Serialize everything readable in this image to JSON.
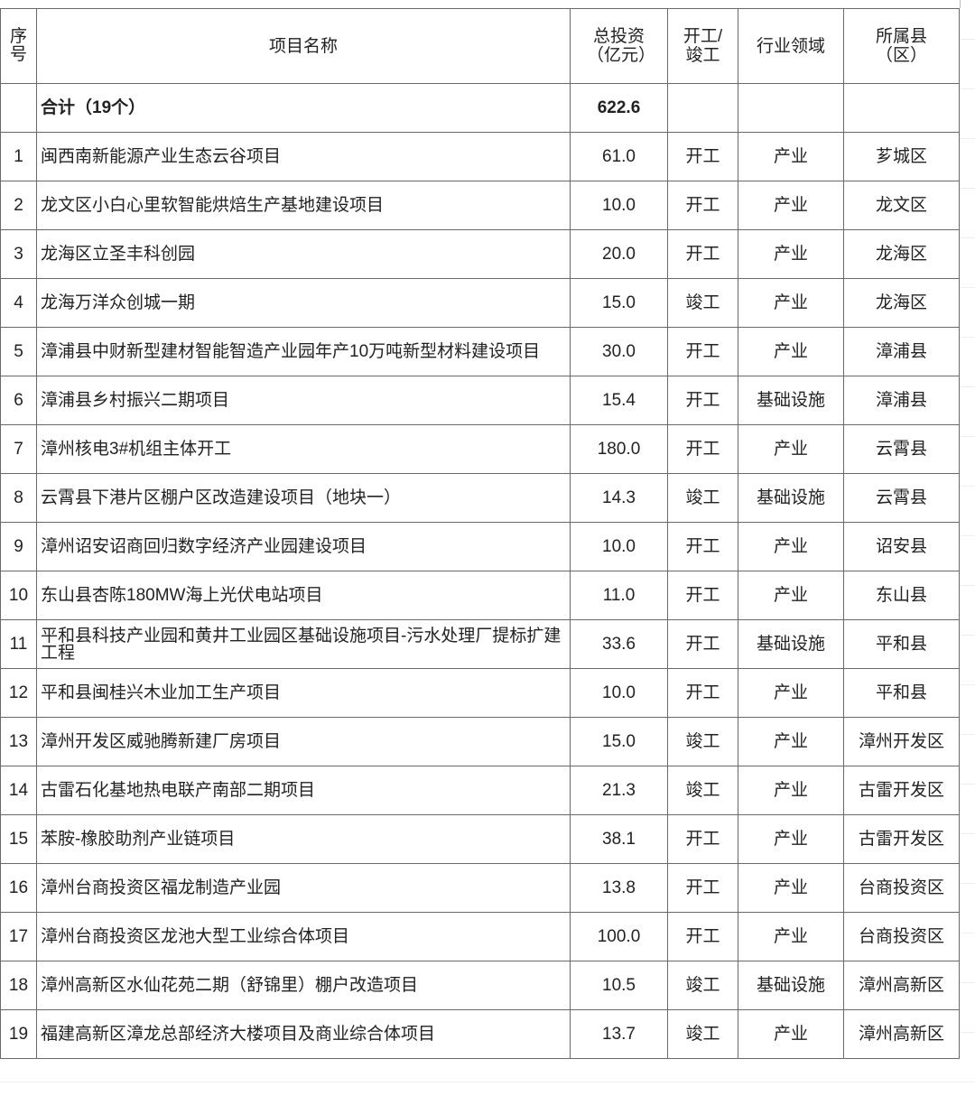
{
  "table": {
    "headers": {
      "seq": "序号",
      "name": "项目名称",
      "investment": "总投资（亿元）",
      "status": "开工/竣工",
      "sector": "行业领域",
      "county": "所属县（区）"
    },
    "total": {
      "label": "合计（19个）",
      "investment": "622.6"
    },
    "rows": [
      {
        "seq": "1",
        "name": "闽西南新能源产业生态云谷项目",
        "investment": "61.0",
        "status": "开工",
        "sector": "产业",
        "county": "芗城区"
      },
      {
        "seq": "2",
        "name": "龙文区小白心里软智能烘焙生产基地建设项目",
        "investment": "10.0",
        "status": "开工",
        "sector": "产业",
        "county": "龙文区"
      },
      {
        "seq": "3",
        "name": "龙海区立圣丰科创园",
        "investment": "20.0",
        "status": "开工",
        "sector": "产业",
        "county": "龙海区"
      },
      {
        "seq": "4",
        "name": "龙海万洋众创城一期",
        "investment": "15.0",
        "status": "竣工",
        "sector": "产业",
        "county": "龙海区"
      },
      {
        "seq": "5",
        "name": "漳浦县中财新型建材智能智造产业园年产10万吨新型材料建设项目",
        "investment": "30.0",
        "status": "开工",
        "sector": "产业",
        "county": "漳浦县"
      },
      {
        "seq": "6",
        "name": "漳浦县乡村振兴二期项目",
        "investment": "15.4",
        "status": "开工",
        "sector": "基础设施",
        "county": "漳浦县"
      },
      {
        "seq": "7",
        "name": "漳州核电3#机组主体开工",
        "investment": "180.0",
        "status": "开工",
        "sector": "产业",
        "county": "云霄县"
      },
      {
        "seq": "8",
        "name": "云霄县下港片区棚户区改造建设项目（地块一）",
        "investment": "14.3",
        "status": "竣工",
        "sector": "基础设施",
        "county": "云霄县"
      },
      {
        "seq": "9",
        "name": "漳州诏安诏商回归数字经济产业园建设项目",
        "investment": "10.0",
        "status": "开工",
        "sector": "产业",
        "county": "诏安县"
      },
      {
        "seq": "10",
        "name": "东山县杏陈180MW海上光伏电站项目",
        "investment": "11.0",
        "status": "开工",
        "sector": "产业",
        "county": "东山县"
      },
      {
        "seq": "11",
        "name": "平和县科技产业园和黄井工业园区基础设施项目-污水处理厂提标扩建工程",
        "investment": "33.6",
        "status": "开工",
        "sector": "基础设施",
        "county": "平和县"
      },
      {
        "seq": "12",
        "name": "平和县闽桂兴木业加工生产项目",
        "investment": "10.0",
        "status": "开工",
        "sector": "产业",
        "county": "平和县"
      },
      {
        "seq": "13",
        "name": "漳州开发区威驰腾新建厂房项目",
        "investment": "15.0",
        "status": "竣工",
        "sector": "产业",
        "county": "漳州开发区"
      },
      {
        "seq": "14",
        "name": "古雷石化基地热电联产南部二期项目",
        "investment": "21.3",
        "status": "竣工",
        "sector": "产业",
        "county": "古雷开发区"
      },
      {
        "seq": "15",
        "name": "苯胺-橡胶助剂产业链项目",
        "investment": "38.1",
        "status": "开工",
        "sector": "产业",
        "county": "古雷开发区"
      },
      {
        "seq": "16",
        "name": "漳州台商投资区福龙制造产业园",
        "investment": "13.8",
        "status": "开工",
        "sector": "产业",
        "county": "台商投资区"
      },
      {
        "seq": "17",
        "name": "漳州台商投资区龙池大型工业综合体项目",
        "investment": "100.0",
        "status": "开工",
        "sector": "产业",
        "county": "台商投资区"
      },
      {
        "seq": "18",
        "name": "漳州高新区水仙花苑二期（舒锦里）棚户改造项目",
        "investment": "10.5",
        "status": "竣工",
        "sector": "基础设施",
        "county": "漳州高新区"
      },
      {
        "seq": "19",
        "name": "福建高新区漳龙总部经济大楼项目及商业综合体项目",
        "investment": "13.7",
        "status": "竣工",
        "sector": "产业",
        "county": "漳州高新区"
      }
    ]
  }
}
